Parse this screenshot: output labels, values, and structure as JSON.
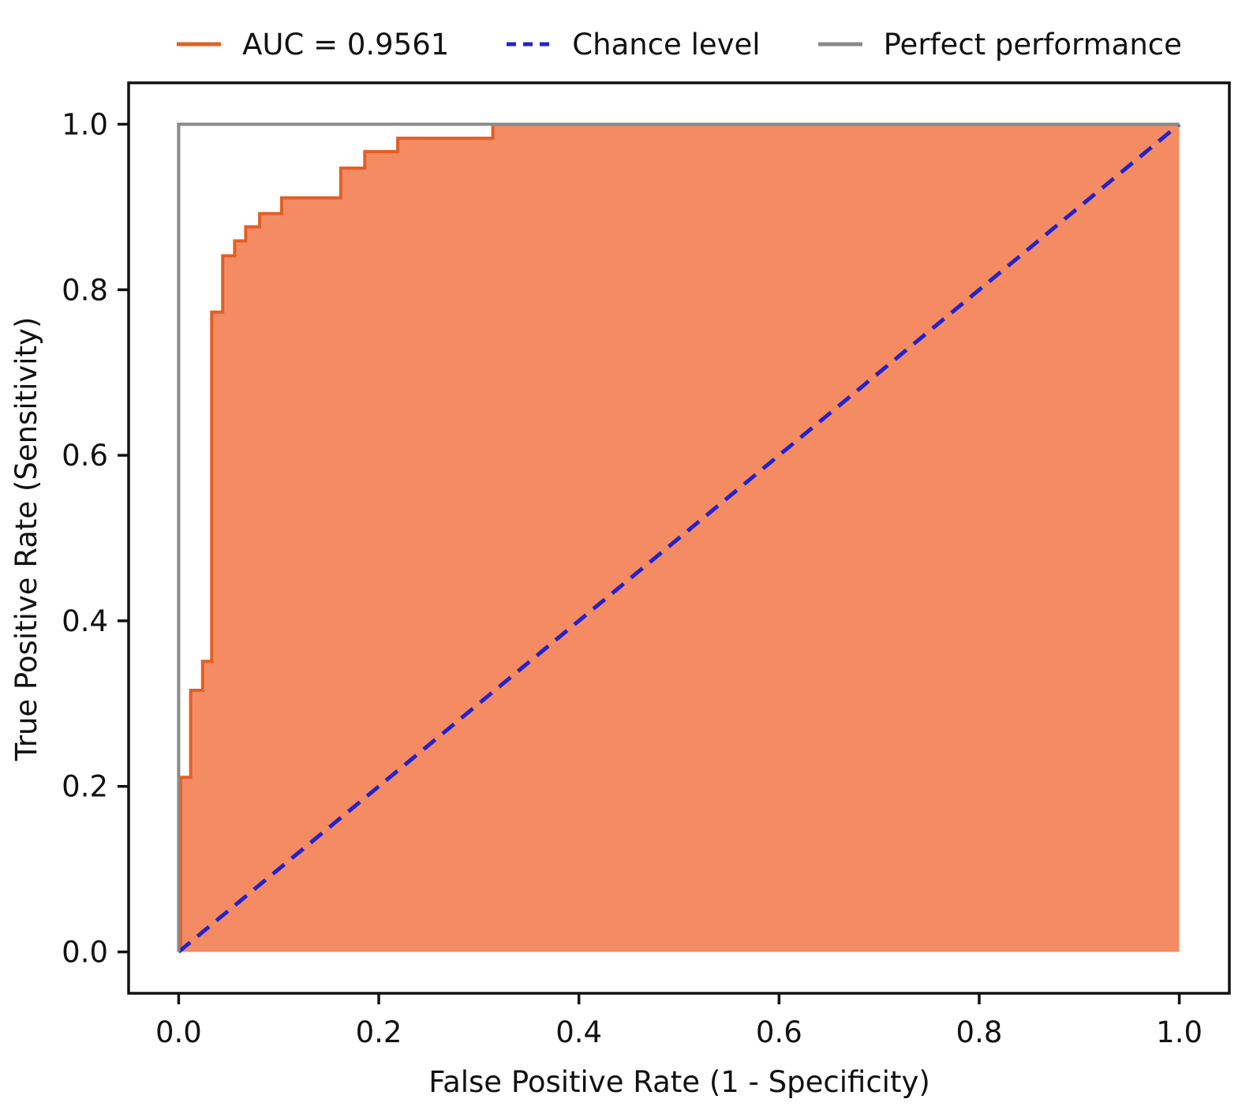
{
  "legend": {
    "items": [
      {
        "id": "auc",
        "label": "AUC = 0.9561",
        "color": "#e45e24",
        "dash": "none"
      },
      {
        "id": "chance",
        "label": "Chance level",
        "color": "#2323cb",
        "dash": "12 9"
      },
      {
        "id": "perfect",
        "label": "Perfect performance",
        "color": "#8a8a8a",
        "dash": "none"
      }
    ]
  },
  "chart_data": {
    "type": "line",
    "subtype": "roc-curve",
    "title": "",
    "xlabel": "False Positive Rate (1 - Specificity)",
    "ylabel": "True Positive Rate (Sensitivity)",
    "xlim": [
      -0.05,
      1.05
    ],
    "ylim": [
      -0.05,
      1.05
    ],
    "xticks": [
      0.0,
      0.2,
      0.4,
      0.6,
      0.8,
      1.0
    ],
    "xtick_labels": [
      "0.0",
      "0.2",
      "0.4",
      "0.6",
      "0.8",
      "1.0"
    ],
    "yticks": [
      0.0,
      0.2,
      0.4,
      0.6,
      0.8,
      1.0
    ],
    "ytick_labels": [
      "0.0",
      "0.2",
      "0.4",
      "0.6",
      "0.8",
      "1.0"
    ],
    "grid": false,
    "legend_position": "top-center",
    "axis_color": "#111111",
    "text_color": "#111111",
    "auc": 0.9561,
    "series": [
      {
        "name": "AUC = 0.9561",
        "kind": "step",
        "line_color": "#e45e24",
        "line_width": 4,
        "fill": "under",
        "fill_color": "#f48b63",
        "points": [
          [
            0.002,
            0.0
          ],
          [
            0.002,
            0.211
          ],
          [
            0.012,
            0.211
          ],
          [
            0.012,
            0.316
          ],
          [
            0.024,
            0.316
          ],
          [
            0.024,
            0.351
          ],
          [
            0.033,
            0.351
          ],
          [
            0.033,
            0.773
          ],
          [
            0.044,
            0.773
          ],
          [
            0.044,
            0.841
          ],
          [
            0.056,
            0.841
          ],
          [
            0.056,
            0.859
          ],
          [
            0.067,
            0.859
          ],
          [
            0.067,
            0.876
          ],
          [
            0.081,
            0.876
          ],
          [
            0.081,
            0.892
          ],
          [
            0.103,
            0.892
          ],
          [
            0.103,
            0.911
          ],
          [
            0.162,
            0.911
          ],
          [
            0.162,
            0.947
          ],
          [
            0.186,
            0.947
          ],
          [
            0.186,
            0.967
          ],
          [
            0.219,
            0.967
          ],
          [
            0.219,
            0.983
          ],
          [
            0.314,
            0.983
          ],
          [
            0.314,
            1.0
          ],
          [
            1.0,
            1.0
          ]
        ]
      },
      {
        "name": "Chance level",
        "kind": "line",
        "line_color": "#2323cb",
        "line_width": 5,
        "dash": "19 12",
        "points": [
          [
            0.0,
            0.0
          ],
          [
            1.0,
            1.0
          ]
        ]
      },
      {
        "name": "Perfect performance",
        "kind": "line",
        "line_color": "#8a8a8a",
        "line_width": 4,
        "points": [
          [
            0.0,
            0.0
          ],
          [
            0.0,
            1.0
          ],
          [
            1.0,
            1.0
          ]
        ]
      }
    ]
  }
}
